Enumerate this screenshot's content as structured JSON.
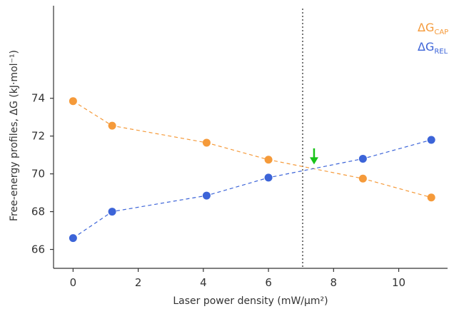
{
  "chart_data": {
    "type": "line",
    "xlabel": "Laser power density (mW/μm²)",
    "ylabel": "Free-energy profiles, ΔG (kJ·mol⁻¹)",
    "xlim": [
      -0.6,
      11.5
    ],
    "ylim": [
      65.0,
      78.9
    ],
    "x_ticks": [
      0,
      2,
      4,
      6,
      8,
      10
    ],
    "y_ticks": [
      66,
      68,
      70,
      72,
      74
    ],
    "x_tick_labels": [
      "0",
      "2",
      "4",
      "6",
      "8",
      "10"
    ],
    "y_tick_labels": [
      "66",
      "68",
      "70",
      "72",
      "74"
    ],
    "grid": false,
    "legend_position": "top-right",
    "series": [
      {
        "name": "ΔG_CAP",
        "label_main": "ΔG",
        "label_sub": "CAP",
        "color": "#f59a3a",
        "x": [
          0,
          1.2,
          4.1,
          6.0,
          8.9,
          11.0
        ],
        "y": [
          73.85,
          72.55,
          71.65,
          70.75,
          69.75,
          68.75
        ]
      },
      {
        "name": "ΔG_REL",
        "label_main": "ΔG",
        "label_sub": "REL",
        "color": "#3c64d8",
        "x": [
          0,
          1.2,
          4.1,
          6.0,
          8.9,
          11.0
        ],
        "y": [
          66.6,
          68.0,
          68.85,
          69.8,
          70.8,
          71.8
        ]
      }
    ],
    "annotations": {
      "vertical_line_x": 7.05,
      "vertical_line_color": "#777777",
      "arrow_x": 7.4,
      "arrow_y_top": 71.35,
      "arrow_y_bottom": 70.5,
      "arrow_color": "#18c318"
    }
  }
}
